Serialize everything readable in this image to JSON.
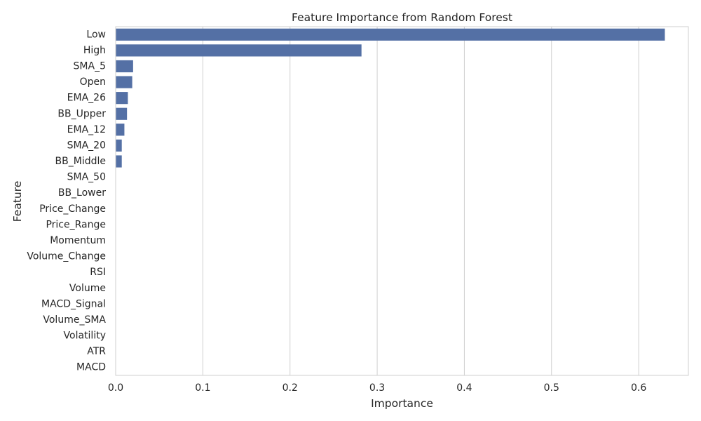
{
  "chart_data": {
    "type": "bar",
    "orientation": "horizontal",
    "title": "Feature Importance from Random Forest",
    "xlabel": "Importance",
    "ylabel": "Feature",
    "xlim": [
      0,
      0.657
    ],
    "xticks": [
      0.0,
      0.1,
      0.2,
      0.3,
      0.4,
      0.5,
      0.6
    ],
    "xtick_labels": [
      "0.0",
      "0.1",
      "0.2",
      "0.3",
      "0.4",
      "0.5",
      "0.6"
    ],
    "grid": "vertical",
    "bar_color": "#5470a5",
    "grid_color": "#cfcfcf",
    "categories": [
      "Low",
      "High",
      "SMA_5",
      "Open",
      "EMA_26",
      "BB_Upper",
      "EMA_12",
      "SMA_20",
      "BB_Middle",
      "SMA_50",
      "BB_Lower",
      "Price_Change",
      "Price_Range",
      "Momentum",
      "Volume_Change",
      "RSI",
      "Volume",
      "MACD_Signal",
      "Volume_SMA",
      "Volatility",
      "ATR",
      "MACD"
    ],
    "values": [
      0.63,
      0.282,
      0.02,
      0.019,
      0.014,
      0.013,
      0.01,
      0.007,
      0.007,
      0.0003,
      0.0002,
      0.0002,
      0.0002,
      0.0001,
      0.0001,
      0.0001,
      0.0001,
      0.0001,
      0.0001,
      0.0001,
      0.0001,
      0.0001
    ]
  }
}
